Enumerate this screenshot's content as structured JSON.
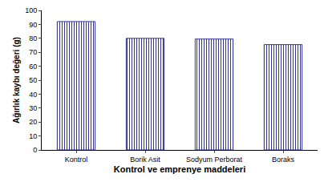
{
  "chart_data": {
    "type": "bar",
    "categories": [
      "Kontrol",
      "Borik Asit",
      "Sodyum Perborat",
      "Boraks"
    ],
    "values": [
      92,
      80,
      79.5,
      75.5
    ],
    "color": "#333399",
    "x_label": "Kontrol ve emprenye maddeleri",
    "y_label": "Ağırlık kaybı değeri (g)",
    "ylim": [
      0,
      100
    ],
    "yticks": [
      0,
      10,
      20,
      30,
      40,
      50,
      60,
      70,
      80,
      90,
      100
    ],
    "grid": false
  }
}
